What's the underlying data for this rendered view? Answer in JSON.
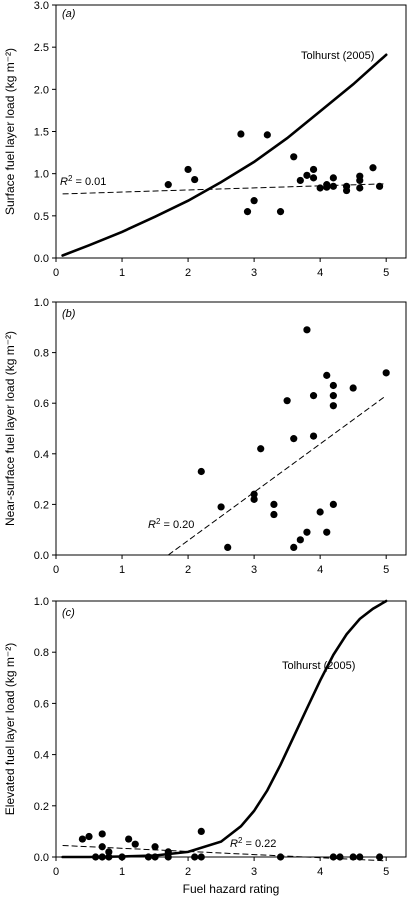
{
  "chart_data": [
    {
      "type": "scatter",
      "panel_label": "(a)",
      "ylabel": "Surface fuel layer load (kg m⁻²)",
      "xlim": [
        0,
        5.3
      ],
      "ylim": [
        0,
        3.0
      ],
      "xticks": [
        "0",
        "1",
        "2",
        "3",
        "4",
        "5"
      ],
      "yticks": [
        "0.0",
        "0.5",
        "1.0",
        "1.5",
        "2.0",
        "2.5",
        "3.0"
      ],
      "points": [
        {
          "x": 1.7,
          "y": 0.87
        },
        {
          "x": 2.0,
          "y": 1.05
        },
        {
          "x": 2.1,
          "y": 0.93
        },
        {
          "x": 2.8,
          "y": 1.47
        },
        {
          "x": 2.9,
          "y": 0.55
        },
        {
          "x": 3.0,
          "y": 0.68
        },
        {
          "x": 3.2,
          "y": 1.46
        },
        {
          "x": 3.4,
          "y": 0.55
        },
        {
          "x": 3.6,
          "y": 1.2
        },
        {
          "x": 3.7,
          "y": 0.92
        },
        {
          "x": 3.8,
          "y": 0.98
        },
        {
          "x": 3.9,
          "y": 1.05
        },
        {
          "x": 3.9,
          "y": 0.95
        },
        {
          "x": 4.0,
          "y": 0.83
        },
        {
          "x": 4.1,
          "y": 0.87
        },
        {
          "x": 4.1,
          "y": 0.84
        },
        {
          "x": 4.2,
          "y": 0.95
        },
        {
          "x": 4.2,
          "y": 0.85
        },
        {
          "x": 4.4,
          "y": 0.85
        },
        {
          "x": 4.4,
          "y": 0.8
        },
        {
          "x": 4.6,
          "y": 0.97
        },
        {
          "x": 4.6,
          "y": 0.92
        },
        {
          "x": 4.6,
          "y": 0.83
        },
        {
          "x": 4.8,
          "y": 1.07
        },
        {
          "x": 4.9,
          "y": 0.85
        }
      ],
      "regression": {
        "x": [
          0.1,
          5.0
        ],
        "y": [
          0.76,
          0.88
        ],
        "label_prefix": "R",
        "label_value": " = 0.01"
      },
      "reference_curve": {
        "label": "Tolhurst (2005)",
        "x": [
          0.1,
          0.5,
          1.0,
          1.5,
          2.0,
          2.5,
          3.0,
          3.5,
          4.0,
          4.5,
          5.0
        ],
        "y": [
          0.03,
          0.15,
          0.31,
          0.49,
          0.68,
          0.9,
          1.14,
          1.42,
          1.74,
          2.06,
          2.41
        ]
      }
    },
    {
      "type": "scatter",
      "panel_label": "(b)",
      "ylabel": "Near-surface fuel layer load (kg m⁻²)",
      "xlim": [
        0,
        5.3
      ],
      "ylim": [
        0,
        1.0
      ],
      "xticks": [
        "0",
        "1",
        "2",
        "3",
        "4",
        "5"
      ],
      "yticks": [
        "0.0",
        "0.2",
        "0.4",
        "0.6",
        "0.8",
        "1.0"
      ],
      "points": [
        {
          "x": 2.2,
          "y": 0.33
        },
        {
          "x": 2.5,
          "y": 0.19
        },
        {
          "x": 2.6,
          "y": 0.03
        },
        {
          "x": 3.0,
          "y": 0.24
        },
        {
          "x": 3.0,
          "y": 0.22
        },
        {
          "x": 3.1,
          "y": 0.42
        },
        {
          "x": 3.3,
          "y": 0.2
        },
        {
          "x": 3.3,
          "y": 0.16
        },
        {
          "x": 3.5,
          "y": 0.61
        },
        {
          "x": 3.6,
          "y": 0.46
        },
        {
          "x": 3.6,
          "y": 0.03
        },
        {
          "x": 3.7,
          "y": 0.06
        },
        {
          "x": 3.8,
          "y": 0.89
        },
        {
          "x": 3.8,
          "y": 0.09
        },
        {
          "x": 3.9,
          "y": 0.63
        },
        {
          "x": 3.9,
          "y": 0.47
        },
        {
          "x": 4.0,
          "y": 0.17
        },
        {
          "x": 4.1,
          "y": 0.71
        },
        {
          "x": 4.1,
          "y": 0.09
        },
        {
          "x": 4.2,
          "y": 0.67
        },
        {
          "x": 4.2,
          "y": 0.63
        },
        {
          "x": 4.2,
          "y": 0.59
        },
        {
          "x": 4.2,
          "y": 0.2
        },
        {
          "x": 4.5,
          "y": 0.66
        },
        {
          "x": 5.0,
          "y": 0.72
        }
      ],
      "regression": {
        "x": [
          1.7,
          5.0
        ],
        "y": [
          0.0,
          0.63
        ],
        "label_prefix": "R",
        "label_value": " = 0.20"
      }
    },
    {
      "type": "scatter",
      "panel_label": "(c)",
      "ylabel": "Elevated fuel layer load (kg m⁻²)",
      "xlabel": "Fuel hazard rating",
      "xlim": [
        0,
        5.3
      ],
      "ylim": [
        0,
        1.0
      ],
      "xticks": [
        "0",
        "1",
        "2",
        "3",
        "4",
        "5"
      ],
      "yticks": [
        "0.0",
        "0.2",
        "0.4",
        "0.6",
        "0.8",
        "1.0"
      ],
      "points": [
        {
          "x": 0.4,
          "y": 0.07
        },
        {
          "x": 0.5,
          "y": 0.08
        },
        {
          "x": 0.6,
          "y": 0.0
        },
        {
          "x": 0.7,
          "y": 0.09
        },
        {
          "x": 0.7,
          "y": 0.04
        },
        {
          "x": 0.7,
          "y": 0.0
        },
        {
          "x": 0.8,
          "y": 0.02
        },
        {
          "x": 0.8,
          "y": 0.0
        },
        {
          "x": 1.0,
          "y": 0.0
        },
        {
          "x": 1.1,
          "y": 0.07
        },
        {
          "x": 1.2,
          "y": 0.05
        },
        {
          "x": 1.4,
          "y": 0.0
        },
        {
          "x": 1.5,
          "y": 0.04
        },
        {
          "x": 1.5,
          "y": 0.0
        },
        {
          "x": 1.7,
          "y": 0.02
        },
        {
          "x": 1.7,
          "y": 0.0
        },
        {
          "x": 2.1,
          "y": 0.0
        },
        {
          "x": 2.2,
          "y": 0.1
        },
        {
          "x": 2.2,
          "y": 0.0
        },
        {
          "x": 3.4,
          "y": 0.0
        },
        {
          "x": 4.2,
          "y": 0.0
        },
        {
          "x": 4.3,
          "y": 0.0
        },
        {
          "x": 4.5,
          "y": 0.0
        },
        {
          "x": 4.6,
          "y": 0.0
        },
        {
          "x": 4.9,
          "y": 0.0
        }
      ],
      "regression": {
        "x": [
          0.1,
          5.0
        ],
        "y": [
          0.045,
          -0.015
        ],
        "label_prefix": "R",
        "label_value": " = 0.22"
      },
      "reference_curve": {
        "label": "Tolhurst (2005)",
        "x": [
          0.1,
          0.5,
          1.0,
          1.5,
          2.0,
          2.5,
          2.8,
          3.0,
          3.2,
          3.4,
          3.6,
          3.8,
          4.0,
          4.2,
          4.4,
          4.6,
          4.8,
          5.0
        ],
        "y": [
          0.0,
          0.0,
          0.002,
          0.006,
          0.02,
          0.06,
          0.12,
          0.18,
          0.26,
          0.36,
          0.47,
          0.58,
          0.69,
          0.79,
          0.87,
          0.93,
          0.97,
          1.0
        ]
      }
    }
  ]
}
